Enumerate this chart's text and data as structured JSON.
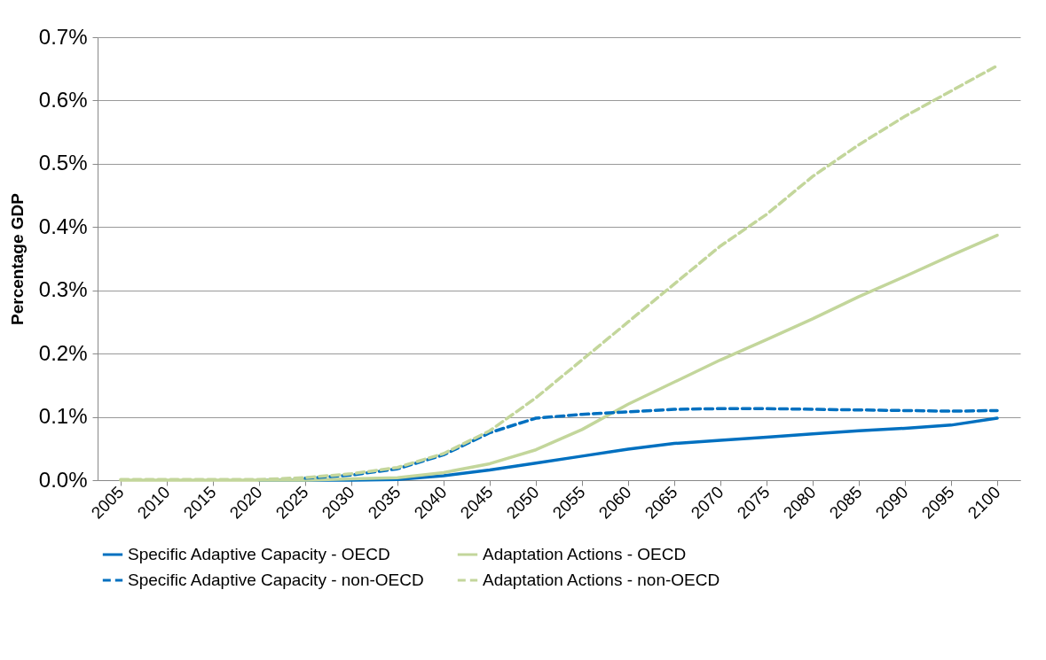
{
  "chart_data": {
    "type": "line",
    "ylabel": "Percentage GDP",
    "categories": [
      "2005",
      "2010",
      "2015",
      "2020",
      "2025",
      "2030",
      "2035",
      "2040",
      "2045",
      "2050",
      "2055",
      "2060",
      "2065",
      "2070",
      "2075",
      "2080",
      "2085",
      "2090",
      "2095",
      "2100"
    ],
    "ylim": [
      0,
      0.7
    ],
    "yticks": [
      {
        "value": 0,
        "label": "0.0%"
      },
      {
        "value": 0.1,
        "label": "0.1%"
      },
      {
        "value": 0.2,
        "label": "0.2%"
      },
      {
        "value": 0.3,
        "label": "0.3%"
      },
      {
        "value": 0.4,
        "label": "0.4%"
      },
      {
        "value": 0.5,
        "label": "0.5%"
      },
      {
        "value": 0.6,
        "label": "0.6%"
      },
      {
        "value": 0.7,
        "label": "0.7%"
      }
    ],
    "grid": "y",
    "legend": "bottom",
    "marker": "none",
    "series": [
      {
        "name": "Specific Adaptive Capacity - OECD",
        "color": "#0070c0",
        "line_style": "solid",
        "values": [
          null,
          null,
          null,
          0,
          0,
          0,
          0.001,
          0.007,
          0.016,
          0.027,
          0.038,
          0.049,
          0.058,
          0.063,
          0.068,
          0.073,
          0.078,
          0.082,
          0.087,
          0.098
        ]
      },
      {
        "name": "Adaptation Actions - OECD",
        "color": "#c3d69b",
        "line_style": "solid",
        "values": [
          0,
          0,
          0,
          0,
          0,
          0.002,
          0.004,
          0.012,
          0.026,
          0.048,
          0.08,
          0.12,
          0.155,
          0.19,
          0.222,
          0.255,
          0.29,
          0.322,
          0.355,
          0.387
        ]
      },
      {
        "name": "Specific Adaptive Capacity - non-OECD",
        "color": "#0070c0",
        "line_style": "dashed",
        "values": [
          null,
          null,
          null,
          null,
          0.003,
          0.008,
          0.018,
          0.04,
          0.075,
          0.098,
          0.104,
          0.108,
          0.112,
          0.113,
          0.113,
          0.112,
          0.111,
          0.11,
          0.109,
          0.11
        ]
      },
      {
        "name": "Adaptation Actions - non-OECD",
        "color": "#c3d69b",
        "line_style": "dashed",
        "values": [
          0.001,
          0.001,
          0.001,
          0.001,
          0.004,
          0.01,
          0.02,
          0.042,
          0.078,
          0.13,
          0.19,
          0.25,
          0.31,
          0.37,
          0.42,
          0.48,
          0.53,
          0.575,
          0.615,
          0.655
        ]
      }
    ]
  }
}
